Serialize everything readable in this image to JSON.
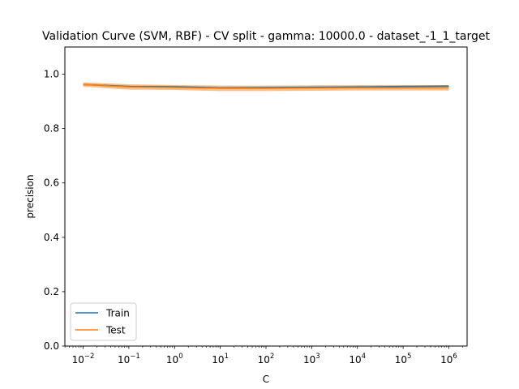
{
  "chart_data": {
    "type": "line",
    "title": "Validation Curve (SVM, RBF) - CV split - gamma: 10000.0 - dataset_-1_1_target",
    "xlabel": "C",
    "ylabel": "precision",
    "x_scale": "log",
    "x": [
      0.01,
      0.1,
      1,
      10,
      100,
      1000,
      10000,
      100000,
      1000000
    ],
    "x_tick_values": [
      0.01,
      0.1,
      1,
      10,
      100,
      1000,
      10000,
      100000,
      1000000
    ],
    "x_tick_labels": [
      {
        "base": "10",
        "exp": "−2"
      },
      {
        "base": "10",
        "exp": "−1"
      },
      {
        "base": "10",
        "exp": "0"
      },
      {
        "base": "10",
        "exp": "1"
      },
      {
        "base": "10",
        "exp": "2"
      },
      {
        "base": "10",
        "exp": "3"
      },
      {
        "base": "10",
        "exp": "4"
      },
      {
        "base": "10",
        "exp": "5"
      },
      {
        "base": "10",
        "exp": "6"
      }
    ],
    "xlim_log10": [
      -2.4,
      6.4
    ],
    "ylim": [
      0.0,
      1.1
    ],
    "y_ticks": [
      0.0,
      0.2,
      0.4,
      0.6,
      0.8,
      1.0
    ],
    "y_tick_labels": [
      "0.0",
      "0.2",
      "0.4",
      "0.6",
      "0.8",
      "1.0"
    ],
    "grid": false,
    "legend_position": "lower-left",
    "series": [
      {
        "name": "Train",
        "color": "#1f77b4",
        "values": [
          0.962,
          0.955,
          0.954,
          0.95,
          0.951,
          0.952,
          0.953,
          0.955,
          0.956
        ],
        "band_lower": [
          0.958,
          0.951,
          0.95,
          0.946,
          0.947,
          0.948,
          0.949,
          0.951,
          0.952
        ],
        "band_upper": [
          0.966,
          0.959,
          0.958,
          0.954,
          0.955,
          0.956,
          0.957,
          0.959,
          0.96
        ]
      },
      {
        "name": "Test",
        "color": "#ff7f0e",
        "values": [
          0.962,
          0.953,
          0.951,
          0.948,
          0.948,
          0.949,
          0.95,
          0.95,
          0.95
        ],
        "band_lower": [
          0.954,
          0.943,
          0.942,
          0.938,
          0.938,
          0.939,
          0.94,
          0.94,
          0.94
        ],
        "band_upper": [
          0.97,
          0.963,
          0.96,
          0.958,
          0.958,
          0.959,
          0.96,
          0.96,
          0.96
        ]
      }
    ]
  }
}
